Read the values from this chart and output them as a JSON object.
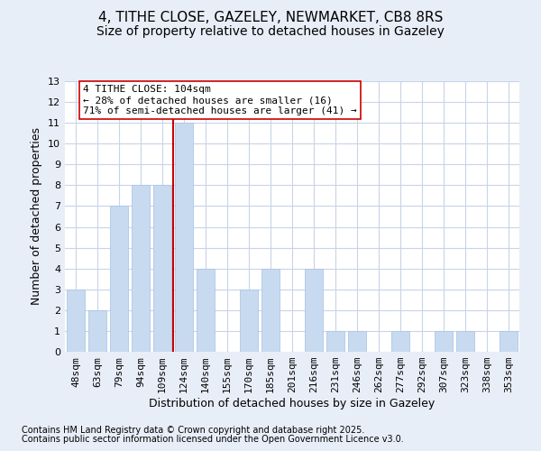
{
  "title1": "4, TITHE CLOSE, GAZELEY, NEWMARKET, CB8 8RS",
  "title2": "Size of property relative to detached houses in Gazeley",
  "xlabel": "Distribution of detached houses by size in Gazeley",
  "ylabel": "Number of detached properties",
  "categories": [
    "48sqm",
    "63sqm",
    "79sqm",
    "94sqm",
    "109sqm",
    "124sqm",
    "140sqm",
    "155sqm",
    "170sqm",
    "185sqm",
    "201sqm",
    "216sqm",
    "231sqm",
    "246sqm",
    "262sqm",
    "277sqm",
    "292sqm",
    "307sqm",
    "323sqm",
    "338sqm",
    "353sqm"
  ],
  "values": [
    3,
    2,
    7,
    8,
    8,
    11,
    4,
    0,
    3,
    4,
    0,
    4,
    1,
    1,
    0,
    1,
    0,
    1,
    1,
    0,
    1
  ],
  "bar_color": "#c8daf0",
  "bar_edge_color": "#aec6e8",
  "grid_color": "#c8d4e8",
  "background_color": "#e8eef8",
  "plot_background": "#ffffff",
  "vline_after_index": 4,
  "vline_color": "#cc0000",
  "annotation_text": "4 TITHE CLOSE: 104sqm\n← 28% of detached houses are smaller (16)\n71% of semi-detached houses are larger (41) →",
  "annotation_box_color": "#ffffff",
  "annotation_box_edge": "#cc0000",
  "ylim": [
    0,
    13
  ],
  "yticks": [
    0,
    1,
    2,
    3,
    4,
    5,
    6,
    7,
    8,
    9,
    10,
    11,
    12,
    13
  ],
  "footer1": "Contains HM Land Registry data © Crown copyright and database right 2025.",
  "footer2": "Contains public sector information licensed under the Open Government Licence v3.0.",
  "title_fontsize": 11,
  "subtitle_fontsize": 10,
  "tick_fontsize": 8,
  "ylabel_fontsize": 9,
  "xlabel_fontsize": 9,
  "footer_fontsize": 7
}
